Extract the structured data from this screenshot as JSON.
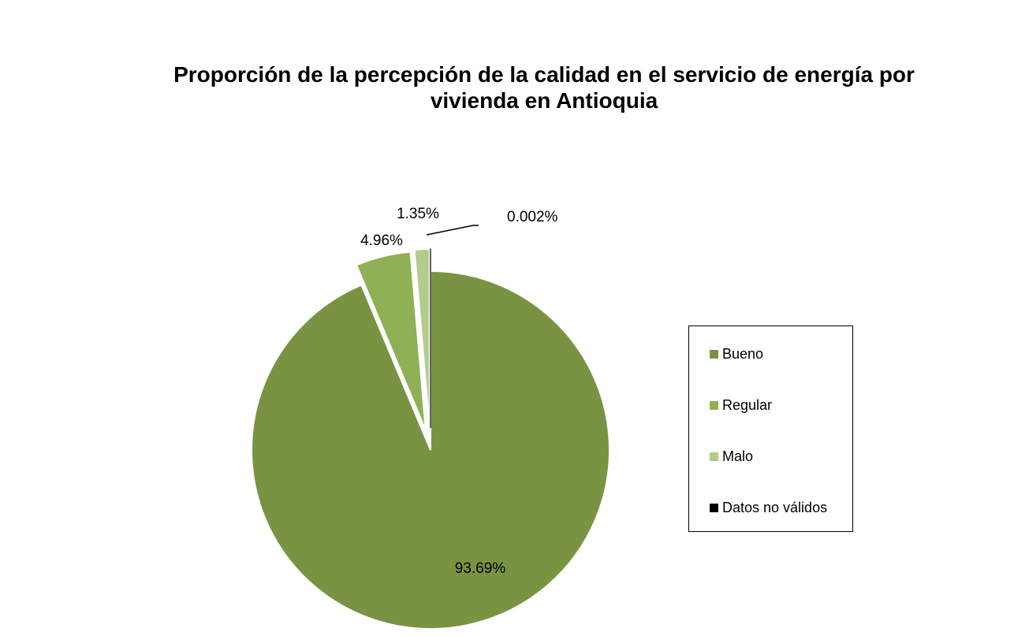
{
  "chart_data": {
    "type": "pie",
    "title_line1": "Proporción de la percepción de la calidad en el servicio de energía por",
    "title_line2": "vivienda en Antioquia",
    "slices": [
      {
        "name": "Bueno",
        "value": 93.69,
        "label": "93.69%",
        "color": "#7a9343"
      },
      {
        "name": "Regular",
        "value": 4.96,
        "label": "4.96%",
        "color": "#8fb055"
      },
      {
        "name": "Malo",
        "value": 1.35,
        "label": "1.35%",
        "color": "#b3cc8c"
      },
      {
        "name": "Datos no válidos",
        "value": 0.002,
        "label": "0.002%",
        "color": "#000000"
      }
    ],
    "legend": {
      "position": "right",
      "items": [
        "Bueno",
        "Regular",
        "Malo",
        "Datos no válidos"
      ]
    },
    "start_angle": "12 o'clock",
    "direction": "clockwise",
    "exploded": [
      "Regular",
      "Malo",
      "Datos no válidos"
    ]
  }
}
